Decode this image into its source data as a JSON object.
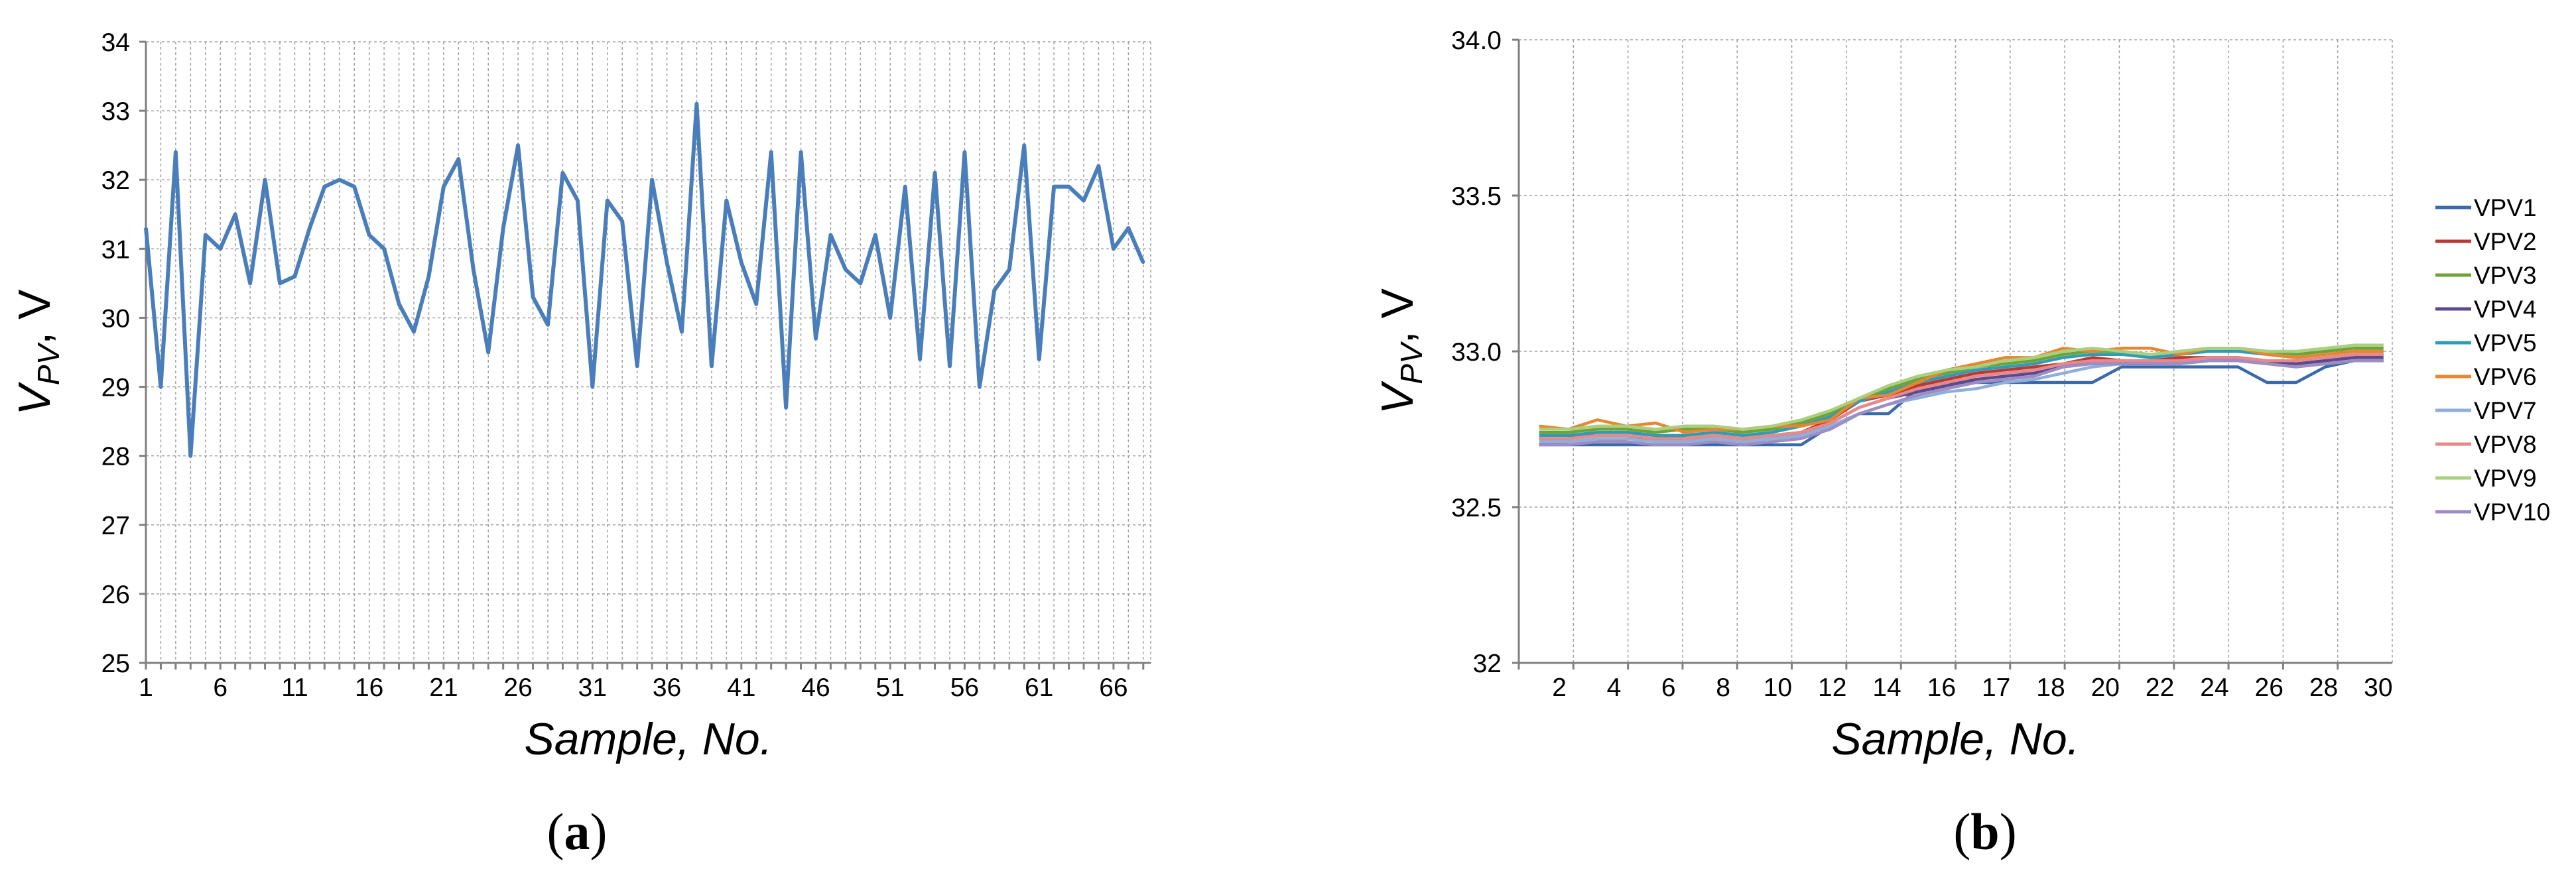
{
  "panels": [
    {
      "open": "(",
      "letter": "a",
      "close": ")"
    },
    {
      "open": "(",
      "letter": "b",
      "close": ")"
    }
  ],
  "chart_data": [
    {
      "type": "line",
      "xlabel": "Sample, No.",
      "ylabel_main": "V",
      "ylabel_sub": "PV",
      "ylabel_unit": ", V",
      "ylim": [
        25,
        34
      ],
      "yticks": [
        25,
        26,
        27,
        28,
        29,
        30,
        31,
        32,
        33,
        34
      ],
      "xlim": [
        1,
        68
      ],
      "xtick_labels": [
        "1",
        "6",
        "11",
        "16",
        "21",
        "26",
        "31",
        "36",
        "41",
        "46",
        "51",
        "56",
        "61",
        "66"
      ],
      "grid": true,
      "colors": [
        "#4A7EBB"
      ],
      "series": [
        {
          "x": [
            1,
            2,
            3,
            4,
            5,
            6,
            7,
            8,
            9,
            10,
            11,
            12,
            13,
            14,
            15,
            16,
            17,
            18,
            19,
            20,
            21,
            22,
            23,
            24,
            25,
            26,
            27,
            28,
            29,
            30,
            31,
            32,
            33,
            34,
            35,
            36,
            37,
            38,
            39,
            40,
            41,
            42,
            43,
            44,
            45,
            46,
            47,
            48,
            49,
            50,
            51,
            52,
            53,
            54,
            55,
            56,
            57,
            58,
            59,
            60,
            61,
            62,
            63,
            64,
            65,
            66,
            67,
            68
          ],
          "values": [
            31.3,
            29.0,
            32.4,
            28.0,
            31.2,
            31.0,
            31.5,
            30.5,
            32.0,
            30.5,
            30.6,
            31.3,
            31.9,
            32.0,
            31.9,
            31.2,
            31.0,
            30.2,
            29.8,
            30.6,
            31.9,
            32.3,
            30.7,
            29.5,
            31.3,
            32.5,
            30.3,
            29.9,
            32.1,
            31.7,
            29.0,
            31.7,
            31.4,
            29.3,
            32.0,
            30.8,
            29.8,
            33.1,
            29.3,
            31.7,
            30.8,
            30.2,
            32.4,
            28.7,
            32.4,
            29.7,
            31.2,
            30.7,
            30.5,
            31.2,
            30.0,
            31.9,
            29.4,
            32.1,
            29.3,
            32.4,
            29.0,
            30.4,
            30.7,
            32.5,
            29.4,
            31.9,
            31.9,
            31.7,
            32.2,
            31.0,
            31.3,
            30.8
          ]
        }
      ]
    },
    {
      "type": "line",
      "xlabel": "Sample, No.",
      "ylabel_main": "V",
      "ylabel_sub": "PV",
      "ylabel_unit": ", V",
      "ylim": [
        32,
        34
      ],
      "yticks": [
        "32",
        "32.5",
        "33.0",
        "33.5",
        "34.0"
      ],
      "xlim": [
        1,
        30
      ],
      "xtick_labels": [
        "2",
        "4",
        "6",
        "8",
        "10",
        "12",
        "14",
        "16",
        "17",
        "18",
        "20",
        "22",
        "24",
        "26",
        "28",
        "30"
      ],
      "grid": true,
      "legend": "right",
      "series": [
        {
          "name": "VPV1",
          "color": "#3B6AA8",
          "values": [
            32.7,
            32.7,
            32.7,
            32.7,
            32.7,
            32.7,
            32.7,
            32.7,
            32.7,
            32.7,
            32.76,
            32.8,
            32.8,
            32.88,
            32.9,
            32.9,
            32.9,
            32.9,
            32.9,
            32.9,
            32.95,
            32.95,
            32.95,
            32.95,
            32.95,
            32.9,
            32.9,
            32.95,
            32.97,
            32.97
          ]
        },
        {
          "name": "VPV2",
          "color": "#B83A35",
          "values": [
            32.72,
            32.72,
            32.74,
            32.74,
            32.73,
            32.72,
            32.73,
            32.72,
            32.73,
            32.74,
            32.78,
            32.84,
            32.86,
            32.89,
            32.91,
            32.93,
            32.94,
            32.95,
            32.96,
            32.98,
            32.97,
            32.97,
            32.98,
            32.98,
            32.97,
            32.96,
            32.96,
            32.97,
            32.98,
            32.99
          ]
        },
        {
          "name": "VPV3",
          "color": "#6FA33A",
          "values": [
            32.74,
            32.74,
            32.75,
            32.75,
            32.74,
            32.75,
            32.75,
            32.74,
            32.75,
            32.77,
            32.8,
            32.84,
            32.88,
            32.91,
            32.93,
            32.95,
            32.96,
            32.97,
            32.99,
            33.0,
            33.0,
            32.99,
            33.0,
            33.01,
            33.01,
            33.0,
            32.99,
            33.0,
            33.01,
            33.01
          ]
        },
        {
          "name": "VPV4",
          "color": "#5B4A8E",
          "values": [
            32.7,
            32.71,
            32.72,
            32.72,
            32.72,
            32.71,
            32.72,
            32.71,
            32.72,
            32.73,
            32.77,
            32.82,
            32.85,
            32.87,
            32.89,
            32.91,
            32.92,
            32.93,
            32.95,
            32.97,
            32.97,
            32.97,
            32.97,
            32.98,
            32.98,
            32.97,
            32.96,
            32.97,
            32.98,
            32.98
          ]
        },
        {
          "name": "VPV5",
          "color": "#2F9BB5",
          "values": [
            32.73,
            32.73,
            32.74,
            32.74,
            32.73,
            32.73,
            32.74,
            32.73,
            32.74,
            32.76,
            32.79,
            32.84,
            32.87,
            32.9,
            32.92,
            32.94,
            32.95,
            32.96,
            32.98,
            32.99,
            32.99,
            32.98,
            32.99,
            33.0,
            33.0,
            32.99,
            32.98,
            32.99,
            33.0,
            33.0
          ]
        },
        {
          "name": "VPV6",
          "color": "#E8862F",
          "values": [
            32.76,
            32.75,
            32.78,
            32.76,
            32.77,
            32.74,
            32.75,
            32.75,
            32.76,
            32.76,
            32.78,
            32.85,
            32.86,
            32.9,
            32.94,
            32.96,
            32.98,
            32.98,
            33.01,
            33.0,
            33.01,
            33.01,
            32.99,
            33.01,
            33.01,
            32.99,
            32.98,
            32.99,
            33.0,
            33.0
          ]
        },
        {
          "name": "VPV7",
          "color": "#8FAFD8",
          "values": [
            32.71,
            32.71,
            32.72,
            32.72,
            32.71,
            32.71,
            32.72,
            32.71,
            32.72,
            32.73,
            32.76,
            32.8,
            32.83,
            32.85,
            32.87,
            32.88,
            32.9,
            32.91,
            32.93,
            32.95,
            32.96,
            32.96,
            32.96,
            32.97,
            32.97,
            32.96,
            32.95,
            32.96,
            32.97,
            32.97
          ]
        },
        {
          "name": "VPV8",
          "color": "#E5898A",
          "values": [
            32.72,
            32.72,
            32.73,
            32.73,
            32.72,
            32.72,
            32.73,
            32.72,
            32.73,
            32.74,
            32.77,
            32.82,
            32.85,
            32.88,
            32.9,
            32.92,
            32.93,
            32.94,
            32.96,
            32.97,
            32.97,
            32.97,
            32.97,
            32.98,
            32.98,
            32.97,
            32.97,
            32.98,
            32.99,
            32.99
          ]
        },
        {
          "name": "VPV9",
          "color": "#A9CF7F",
          "values": [
            32.75,
            32.75,
            32.76,
            32.76,
            32.75,
            32.76,
            32.76,
            32.75,
            32.76,
            32.78,
            32.81,
            32.85,
            32.89,
            32.92,
            32.94,
            32.95,
            32.97,
            32.98,
            33.0,
            33.01,
            33.0,
            32.99,
            33.0,
            33.01,
            33.01,
            33.0,
            33.0,
            33.01,
            33.02,
            33.02
          ]
        },
        {
          "name": "VPV10",
          "color": "#9E8CC4",
          "values": [
            32.7,
            32.7,
            32.71,
            32.71,
            32.7,
            32.7,
            32.71,
            32.7,
            32.71,
            32.72,
            32.75,
            32.8,
            32.83,
            32.86,
            32.88,
            32.9,
            32.91,
            32.92,
            32.95,
            32.96,
            32.96,
            32.96,
            32.96,
            32.97,
            32.97,
            32.96,
            32.95,
            32.96,
            32.97,
            32.97
          ]
        }
      ]
    }
  ]
}
